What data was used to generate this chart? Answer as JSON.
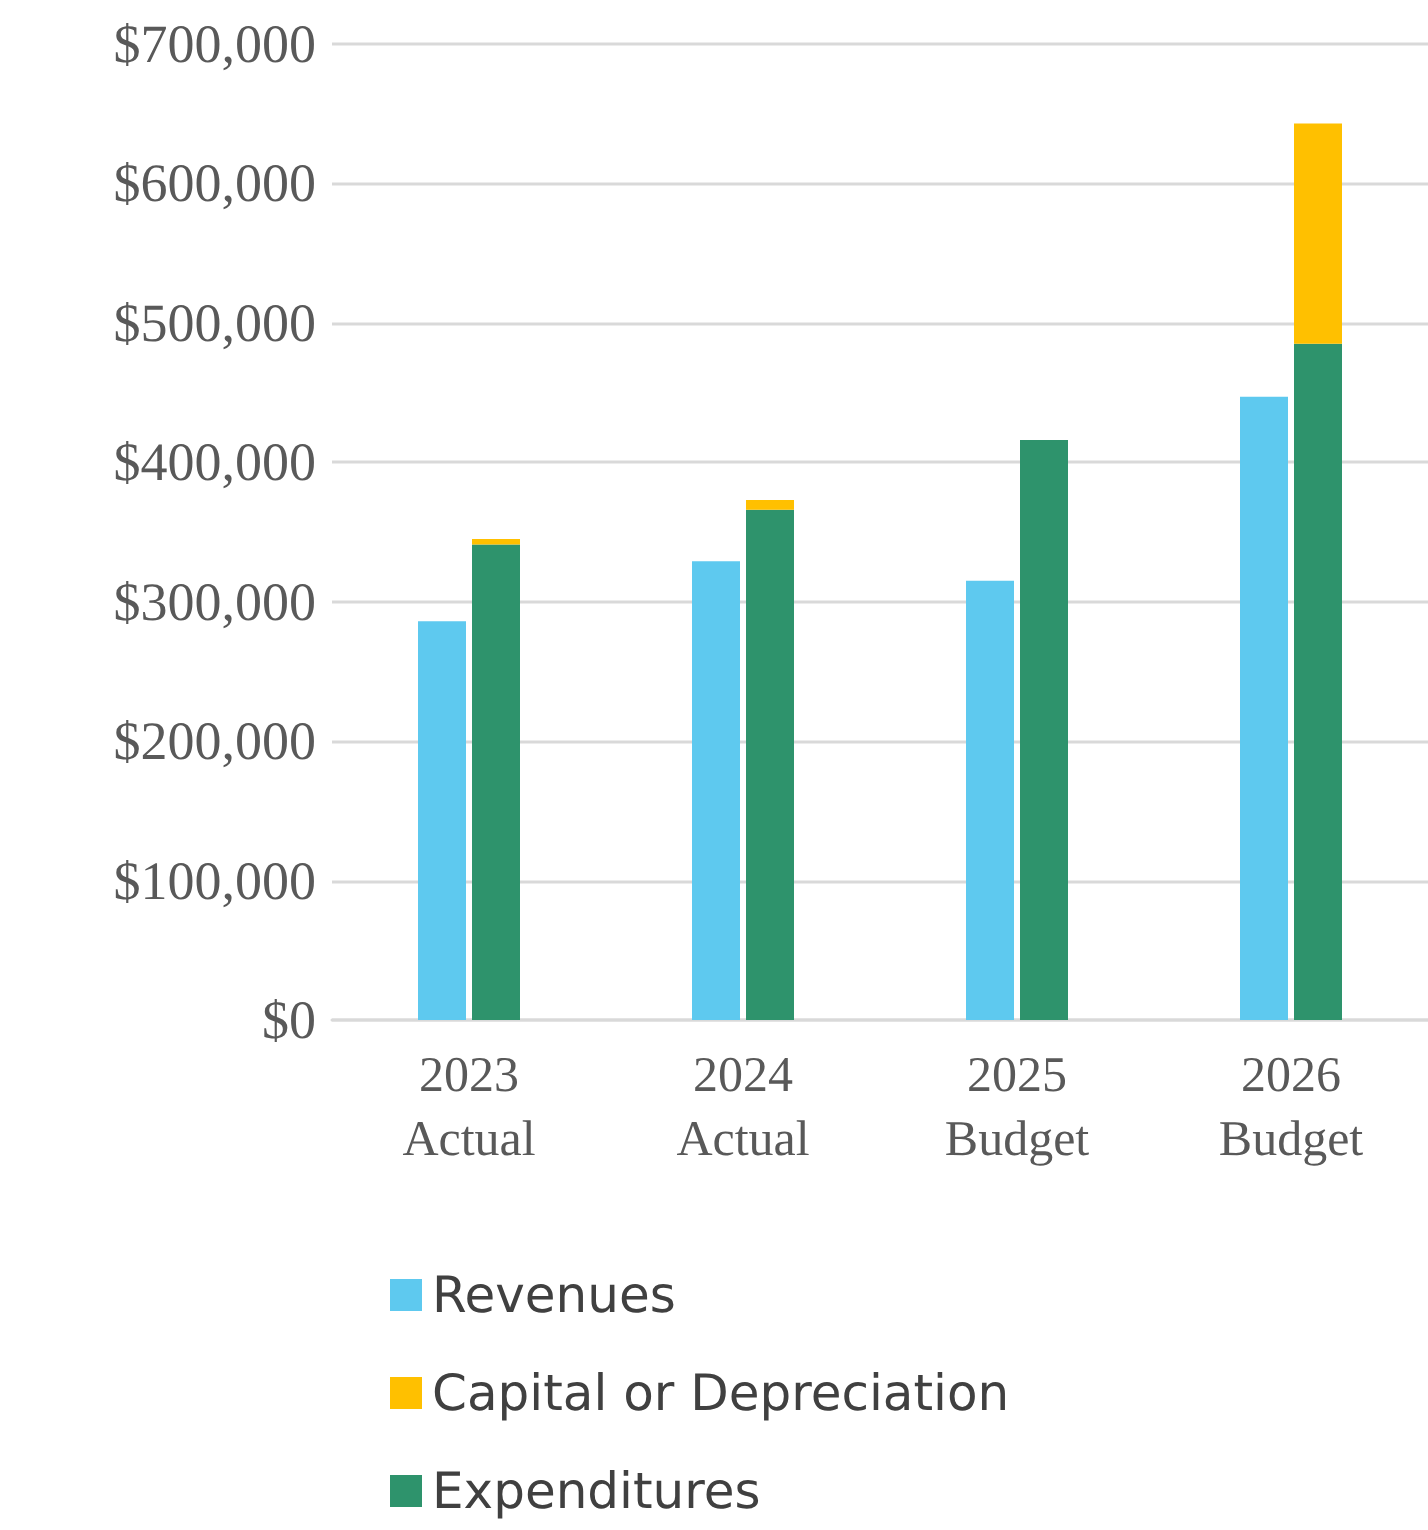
{
  "chart_data": {
    "type": "bar",
    "categories": [
      "2023\nActual",
      "2024\nActual",
      "2025\nBudget",
      "2026\nBudget"
    ],
    "series": [
      {
        "name": "Revenues",
        "color": "#5ec9ef",
        "values": [
          286000,
          329000,
          315000,
          447000
        ]
      },
      {
        "name": "Capital or Depreciation",
        "color": "#ffc000",
        "values": [
          4000,
          7000,
          null,
          158000
        ],
        "base": [
          341000,
          366000,
          null,
          485000
        ]
      },
      {
        "name": "Expenditures",
        "color": "#2e936c",
        "values": [
          341000,
          366000,
          416000,
          485000
        ]
      }
    ],
    "ylim": [
      0,
      700000
    ],
    "yticks": [
      {
        "value": 0,
        "label": "$0"
      },
      {
        "value": 100000,
        "label": "$100,000"
      },
      {
        "value": 200000,
        "label": "$200,000"
      },
      {
        "value": 300000,
        "label": "$300,000"
      },
      {
        "value": 400000,
        "label": "$400,000"
      },
      {
        "value": 500000,
        "label": "$500,000"
      },
      {
        "value": 600000,
        "label": "$600,000"
      },
      {
        "value": 700000,
        "label": "$700,000"
      }
    ],
    "grid": "y",
    "legend": "bottom left"
  }
}
